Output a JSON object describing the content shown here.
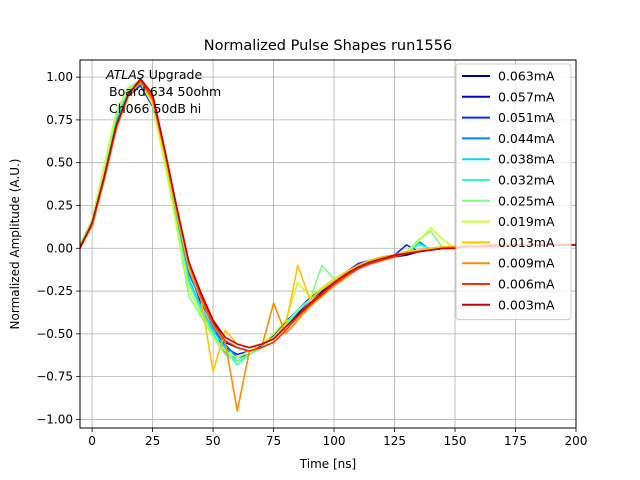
{
  "chart_data": {
    "type": "line",
    "title": "Normalized Pulse Shapes run1556",
    "xlabel": "Time [ns]",
    "ylabel": "Normalized Amplitude (A.U.)",
    "xlim": [
      -5,
      200
    ],
    "ylim": [
      -1.05,
      1.1
    ],
    "xticks": [
      0,
      25,
      50,
      75,
      100,
      125,
      150,
      175,
      200
    ],
    "yticks": [
      -1.0,
      -0.75,
      -0.5,
      -0.25,
      0.0,
      0.25,
      0.5,
      0.75,
      1.0
    ],
    "xtick_labels": [
      "0",
      "25",
      "50",
      "75",
      "100",
      "125",
      "150",
      "175",
      "200"
    ],
    "ytick_labels": [
      "−1.00",
      "−0.75",
      "−0.50",
      "−0.25",
      "0.00",
      "0.25",
      "0.50",
      "0.75",
      "1.00"
    ],
    "grid": true,
    "legend_position": "top-right",
    "annotation": {
      "line1": "ATLAS",
      "line1_suffix": " Upgrade",
      "line2": "Board 634 50ohm",
      "line3": "Ch066 50dB hi"
    },
    "series": [
      {
        "name": "0.063mA",
        "color": "#00008f",
        "x": [
          -5,
          0,
          5,
          10,
          15,
          20,
          25,
          30,
          35,
          40,
          45,
          50,
          55,
          60,
          65,
          70,
          75,
          80,
          85,
          90,
          95,
          100,
          105,
          110,
          115,
          120,
          125,
          130,
          135,
          140,
          145,
          150,
          155,
          160,
          165,
          170,
          175,
          180,
          185,
          190,
          195,
          200
        ],
        "y": [
          0.0,
          0.14,
          0.4,
          0.7,
          0.9,
          0.97,
          0.85,
          0.55,
          0.2,
          -0.1,
          -0.3,
          -0.42,
          -0.55,
          -0.58,
          -0.6,
          -0.57,
          -0.52,
          -0.45,
          -0.38,
          -0.3,
          -0.25,
          -0.2,
          -0.15,
          -0.1,
          -0.08,
          -0.06,
          -0.05,
          -0.04,
          -0.02,
          -0.01,
          0.0,
          0.0,
          0.01,
          0.01,
          0.02,
          0.02,
          0.02,
          0.02,
          0.02,
          0.02,
          0.02,
          0.02
        ]
      },
      {
        "name": "0.057mA",
        "color": "#0000d0",
        "x": [
          -5,
          0,
          5,
          10,
          15,
          20,
          25,
          30,
          35,
          40,
          45,
          50,
          55,
          60,
          65,
          70,
          75,
          80,
          85,
          90,
          95,
          100,
          105,
          110,
          115,
          120,
          125,
          130,
          135,
          140,
          145,
          150,
          155,
          160,
          165,
          170,
          175,
          180,
          185,
          190,
          195,
          200
        ],
        "y": [
          0.02,
          0.15,
          0.42,
          0.72,
          0.91,
          0.96,
          0.84,
          0.52,
          0.18,
          -0.12,
          -0.32,
          -0.44,
          -0.62,
          -0.66,
          -0.62,
          -0.58,
          -0.52,
          -0.44,
          -0.37,
          -0.3,
          -0.24,
          -0.18,
          -0.14,
          -0.1,
          -0.07,
          -0.06,
          -0.04,
          -0.03,
          -0.02,
          -0.01,
          0.0,
          0.0,
          0.01,
          0.01,
          0.01,
          0.02,
          0.02,
          0.02,
          0.02,
          0.02,
          0.02,
          0.02
        ]
      },
      {
        "name": "0.051mA",
        "color": "#0030ff",
        "x": [
          -5,
          0,
          5,
          10,
          15,
          20,
          25,
          30,
          35,
          40,
          45,
          50,
          55,
          60,
          65,
          70,
          75,
          80,
          85,
          90,
          95,
          100,
          105,
          110,
          115,
          120,
          125,
          130,
          135,
          140,
          145,
          150,
          155,
          160,
          165,
          170,
          175,
          180,
          185,
          190,
          195,
          200
        ],
        "y": [
          0.01,
          0.13,
          0.41,
          0.71,
          0.89,
          0.95,
          0.83,
          0.53,
          0.19,
          -0.11,
          -0.31,
          -0.45,
          -0.58,
          -0.62,
          -0.6,
          -0.57,
          -0.51,
          -0.43,
          -0.36,
          -0.29,
          -0.23,
          -0.18,
          -0.14,
          -0.09,
          -0.07,
          -0.05,
          -0.04,
          0.02,
          -0.02,
          -0.01,
          0.0,
          0.0,
          0.01,
          0.01,
          0.01,
          0.01,
          0.02,
          0.02,
          0.02,
          0.02,
          0.02,
          0.02
        ]
      },
      {
        "name": "0.044mA",
        "color": "#0080ff",
        "x": [
          -5,
          0,
          5,
          10,
          15,
          20,
          25,
          30,
          35,
          40,
          45,
          50,
          55,
          60,
          65,
          70,
          75,
          80,
          85,
          90,
          95,
          100,
          105,
          110,
          115,
          120,
          125,
          130,
          135,
          140,
          145,
          150,
          155,
          160,
          165,
          170,
          175,
          180,
          185,
          190,
          195,
          200
        ],
        "y": [
          0.0,
          0.14,
          0.43,
          0.73,
          0.9,
          0.96,
          0.84,
          0.54,
          0.17,
          -0.15,
          -0.3,
          -0.46,
          -0.56,
          -0.64,
          -0.62,
          -0.58,
          -0.52,
          -0.44,
          -0.36,
          -0.3,
          -0.24,
          -0.19,
          -0.14,
          -0.1,
          -0.07,
          -0.06,
          -0.04,
          -0.02,
          0.04,
          -0.01,
          0.0,
          0.0,
          0.01,
          0.01,
          0.01,
          0.02,
          0.02,
          0.02,
          0.02,
          0.02,
          0.02,
          0.02
        ]
      },
      {
        "name": "0.038mA",
        "color": "#00d4ff",
        "x": [
          -5,
          0,
          5,
          10,
          15,
          20,
          25,
          30,
          35,
          40,
          45,
          50,
          55,
          60,
          65,
          70,
          75,
          80,
          85,
          90,
          95,
          100,
          105,
          110,
          115,
          120,
          125,
          130,
          135,
          140,
          145,
          150,
          155,
          160,
          165,
          170,
          175,
          180,
          185,
          190,
          195,
          200
        ],
        "y": [
          0.02,
          0.16,
          0.45,
          0.75,
          0.92,
          0.97,
          0.85,
          0.52,
          0.15,
          -0.18,
          -0.34,
          -0.48,
          -0.58,
          -0.66,
          -0.62,
          -0.58,
          -0.52,
          -0.45,
          -0.37,
          -0.3,
          -0.24,
          -0.19,
          -0.14,
          -0.1,
          -0.07,
          -0.05,
          -0.04,
          -0.02,
          0.03,
          -0.01,
          0.0,
          0.0,
          0.01,
          0.01,
          0.01,
          0.02,
          0.02,
          0.02,
          0.02,
          0.02,
          0.02,
          0.02
        ]
      },
      {
        "name": "0.032mA",
        "color": "#29ffce",
        "x": [
          -5,
          0,
          5,
          10,
          15,
          20,
          25,
          30,
          35,
          40,
          45,
          50,
          55,
          60,
          65,
          70,
          75,
          80,
          85,
          90,
          95,
          100,
          105,
          110,
          115,
          120,
          125,
          130,
          135,
          140,
          145,
          150,
          155,
          160,
          165,
          170,
          175,
          180,
          185,
          190,
          195,
          200
        ],
        "y": [
          0.01,
          0.15,
          0.46,
          0.78,
          0.93,
          0.97,
          0.84,
          0.5,
          0.14,
          -0.2,
          -0.36,
          -0.5,
          -0.6,
          -0.68,
          -0.62,
          -0.58,
          -0.52,
          -0.45,
          -0.37,
          -0.3,
          -0.24,
          -0.19,
          -0.14,
          -0.1,
          -0.07,
          -0.05,
          -0.04,
          -0.02,
          0.02,
          0.0,
          0.0,
          0.0,
          0.01,
          0.01,
          0.01,
          0.02,
          0.02,
          0.02,
          0.02,
          0.02,
          0.02,
          0.02
        ]
      },
      {
        "name": "0.025mA",
        "color": "#7dff7a",
        "x": [
          -5,
          0,
          5,
          10,
          15,
          20,
          25,
          30,
          35,
          40,
          45,
          50,
          55,
          60,
          65,
          70,
          75,
          80,
          85,
          90,
          95,
          100,
          105,
          110,
          115,
          120,
          125,
          130,
          135,
          140,
          145,
          150,
          155,
          160,
          165,
          170,
          175,
          180,
          185,
          190,
          195,
          200
        ],
        "y": [
          0.02,
          0.17,
          0.48,
          0.8,
          0.94,
          0.98,
          0.85,
          0.5,
          0.12,
          -0.28,
          -0.4,
          -0.52,
          -0.62,
          -0.66,
          -0.62,
          -0.58,
          -0.52,
          -0.44,
          -0.36,
          -0.3,
          -0.1,
          -0.18,
          -0.14,
          -0.1,
          -0.07,
          -0.05,
          -0.04,
          -0.02,
          0.05,
          0.1,
          0.0,
          0.0,
          0.01,
          0.01,
          0.01,
          0.02,
          0.02,
          0.02,
          0.02,
          0.02,
          0.02,
          0.02
        ]
      },
      {
        "name": "0.019mA",
        "color": "#ceff29",
        "x": [
          -5,
          0,
          5,
          10,
          15,
          20,
          25,
          30,
          35,
          40,
          45,
          50,
          55,
          60,
          65,
          70,
          75,
          80,
          85,
          90,
          95,
          100,
          105,
          110,
          115,
          120,
          125,
          130,
          135,
          140,
          145,
          150,
          155,
          160,
          165,
          170,
          175,
          180,
          185,
          190,
          195,
          200
        ],
        "y": [
          0.0,
          0.16,
          0.47,
          0.79,
          0.93,
          0.97,
          0.84,
          0.5,
          0.13,
          -0.24,
          -0.38,
          -0.52,
          -0.6,
          -0.64,
          -0.6,
          -0.56,
          -0.5,
          -0.42,
          -0.2,
          -0.28,
          -0.23,
          -0.18,
          -0.14,
          -0.1,
          -0.07,
          -0.05,
          -0.04,
          -0.02,
          0.04,
          0.12,
          0.05,
          0.0,
          0.01,
          0.01,
          0.01,
          0.02,
          0.02,
          0.02,
          0.02,
          0.02,
          0.02,
          0.02
        ]
      },
      {
        "name": "0.013mA",
        "color": "#ffc400",
        "x": [
          -5,
          0,
          5,
          10,
          15,
          20,
          25,
          30,
          35,
          40,
          45,
          50,
          55,
          60,
          65,
          70,
          75,
          80,
          85,
          90,
          95,
          100,
          105,
          110,
          115,
          120,
          125,
          130,
          135,
          140,
          145,
          150,
          155,
          160,
          165,
          170,
          175,
          180,
          185,
          190,
          195,
          200
        ],
        "y": [
          0.01,
          0.14,
          0.42,
          0.72,
          0.9,
          0.97,
          0.86,
          0.55,
          0.2,
          -0.12,
          -0.3,
          -0.72,
          -0.48,
          -0.56,
          -0.58,
          -0.56,
          -0.52,
          -0.45,
          -0.1,
          -0.3,
          -0.24,
          -0.19,
          -0.14,
          -0.1,
          -0.07,
          -0.05,
          -0.04,
          -0.02,
          -0.01,
          0.0,
          0.01,
          0.01,
          0.02,
          0.03,
          0.02,
          0.03,
          0.02,
          0.03,
          0.02,
          0.02,
          0.03,
          0.02
        ]
      },
      {
        "name": "0.009mA",
        "color": "#ff8d00",
        "x": [
          -5,
          0,
          5,
          10,
          15,
          20,
          25,
          30,
          35,
          40,
          45,
          50,
          55,
          60,
          65,
          70,
          75,
          80,
          85,
          90,
          95,
          100,
          105,
          110,
          115,
          120,
          125,
          130,
          135,
          140,
          145,
          150,
          155,
          160,
          165,
          170,
          175,
          180,
          185,
          190,
          195,
          200
        ],
        "y": [
          0.0,
          0.13,
          0.4,
          0.7,
          0.89,
          0.97,
          0.87,
          0.56,
          0.22,
          -0.1,
          -0.3,
          -0.45,
          -0.55,
          -0.95,
          -0.6,
          -0.58,
          -0.32,
          -0.5,
          -0.42,
          -0.34,
          -0.28,
          -0.22,
          -0.17,
          -0.12,
          -0.09,
          -0.07,
          -0.05,
          -0.03,
          -0.02,
          -0.01,
          0.0,
          0.01,
          0.01,
          0.01,
          0.02,
          0.02,
          0.02,
          0.02,
          0.02,
          0.02,
          0.02,
          0.02
        ]
      },
      {
        "name": "0.006mA",
        "color": "#ff3000",
        "x": [
          -5,
          0,
          5,
          10,
          15,
          20,
          25,
          30,
          35,
          40,
          45,
          50,
          55,
          60,
          65,
          70,
          75,
          80,
          85,
          90,
          95,
          100,
          105,
          110,
          115,
          120,
          125,
          130,
          135,
          140,
          145,
          150,
          155,
          160,
          165,
          170,
          175,
          180,
          185,
          190,
          195,
          200
        ],
        "y": [
          0.01,
          0.14,
          0.41,
          0.71,
          0.9,
          0.98,
          0.88,
          0.57,
          0.23,
          -0.08,
          -0.28,
          -0.44,
          -0.54,
          -0.58,
          -0.6,
          -0.58,
          -0.55,
          -0.48,
          -0.4,
          -0.33,
          -0.27,
          -0.21,
          -0.16,
          -0.12,
          -0.09,
          -0.07,
          -0.05,
          -0.03,
          -0.02,
          -0.01,
          0.0,
          0.0,
          0.01,
          0.01,
          0.02,
          0.02,
          0.02,
          0.02,
          0.02,
          0.02,
          0.02,
          0.02
        ]
      },
      {
        "name": "0.003mA",
        "color": "#c80000",
        "x": [
          -5,
          0,
          5,
          10,
          15,
          20,
          25,
          30,
          35,
          40,
          45,
          50,
          55,
          60,
          65,
          70,
          75,
          80,
          85,
          90,
          95,
          100,
          105,
          110,
          115,
          120,
          125,
          130,
          135,
          140,
          145,
          150,
          155,
          160,
          165,
          170,
          175,
          180,
          185,
          190,
          195,
          200
        ],
        "y": [
          0.0,
          0.15,
          0.42,
          0.72,
          0.9,
          0.99,
          0.9,
          0.58,
          0.24,
          -0.08,
          -0.26,
          -0.42,
          -0.52,
          -0.56,
          -0.58,
          -0.56,
          -0.53,
          -0.46,
          -0.39,
          -0.32,
          -0.26,
          -0.2,
          -0.15,
          -0.11,
          -0.08,
          -0.06,
          -0.04,
          -0.03,
          -0.02,
          -0.01,
          0.0,
          0.0,
          0.01,
          0.01,
          0.01,
          0.01,
          0.02,
          0.02,
          0.02,
          0.02,
          0.02,
          0.02
        ]
      }
    ]
  }
}
